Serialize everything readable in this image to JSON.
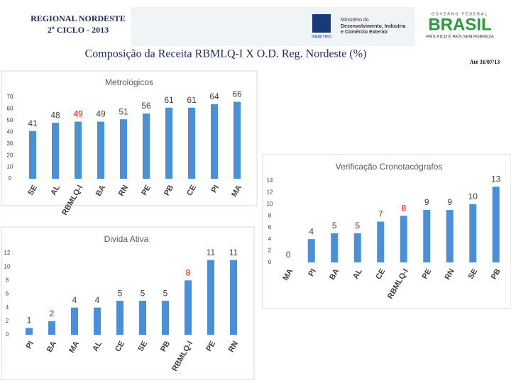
{
  "header": {
    "region": "REGIONAL NORDESTE",
    "cycle": "2º CICLO - 2013",
    "title": "Composição da Receita RBMLQ-I X O.D. Reg. Nordeste (%)",
    "date": "Até 31/07/13",
    "inmetro": "INMETRO",
    "ministry": [
      "Ministério do",
      "Desenvolvimento, Indústria",
      "e Comércio Exterior"
    ],
    "gov": "GOVERNO FEDERAL",
    "brasil": "BRASIL",
    "slogan": "PAÍS RICO É PAÍS SEM POBREZA"
  },
  "chart_data": [
    {
      "type": "bar",
      "title": "Metrológicos",
      "categories": [
        "SE",
        "AL",
        "RBMLQ-I",
        "BA",
        "RN",
        "PE",
        "PB",
        "CE",
        "PI",
        "MA"
      ],
      "values": [
        41,
        48,
        49,
        49,
        51,
        56,
        61,
        61,
        64,
        66
      ],
      "color": "#4a90d9",
      "label_colors": [
        "#404040",
        "#404040",
        "#ff0000",
        "#404040",
        "#404040",
        "#404040",
        "#404040",
        "#404040",
        "#404040",
        "#404040"
      ],
      "ylim": [
        0,
        70
      ],
      "yticks": [
        0,
        10,
        20,
        30,
        40,
        50,
        60,
        70
      ]
    },
    {
      "type": "bar",
      "title": "Verificação Cronotacógrafos",
      "categories": [
        "MA",
        "PI",
        "BA",
        "AL",
        "CE",
        "RBMLQ-I",
        "PE",
        "RN",
        "SE",
        "PB"
      ],
      "values": [
        0,
        4,
        5,
        5,
        7,
        8,
        9,
        9,
        10,
        13
      ],
      "color": "#4a90d9",
      "label_colors": [
        "#404040",
        "#404040",
        "#404040",
        "#404040",
        "#404040",
        "#ff0000",
        "#404040",
        "#404040",
        "#404040",
        "#404040"
      ],
      "ylim": [
        0,
        14
      ],
      "yticks": [
        0,
        2,
        4,
        6,
        8,
        10,
        12,
        14
      ]
    },
    {
      "type": "bar",
      "title": "Divida Ativa",
      "categories": [
        "PI",
        "BA",
        "MA",
        "AL",
        "CE",
        "SE",
        "PB",
        "RBMLQ-I",
        "PE",
        "RN"
      ],
      "values": [
        1,
        2,
        4,
        4,
        5,
        5,
        5,
        8,
        11,
        11
      ],
      "color": "#4a90d9",
      "label_colors": [
        "#404040",
        "#404040",
        "#404040",
        "#404040",
        "#404040",
        "#404040",
        "#404040",
        "#ff0000",
        "#404040",
        "#404040"
      ],
      "ylim": [
        0,
        12
      ],
      "yticks": [
        0,
        2,
        4,
        6,
        8,
        10,
        12
      ]
    }
  ]
}
